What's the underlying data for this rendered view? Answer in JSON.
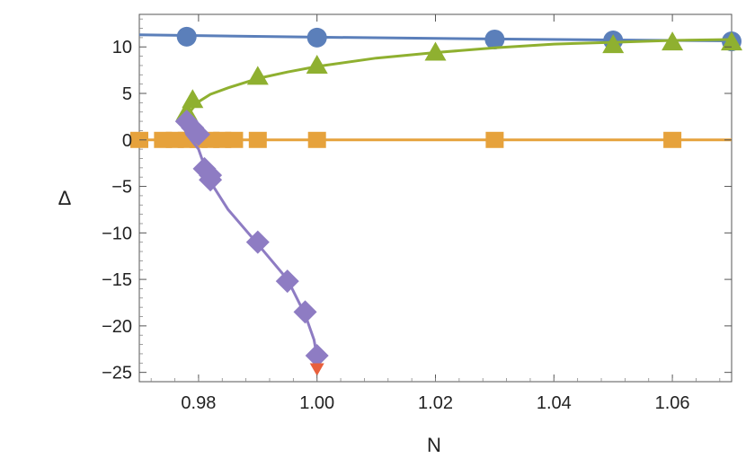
{
  "chart_data": {
    "type": "scatter",
    "title": "",
    "xlabel": "N",
    "ylabel": "Δ",
    "xlim": [
      0.97,
      1.07
    ],
    "ylim": [
      -26,
      13.5
    ],
    "xticks": [
      0.98,
      1.0,
      1.02,
      1.04,
      1.06
    ],
    "xtick_labels": [
      "0.98",
      "1.00",
      "1.02",
      "1.04",
      "1.06"
    ],
    "yticks": [
      -25,
      -20,
      -15,
      -10,
      -5,
      0,
      5,
      10
    ],
    "ytick_labels": [
      "−25",
      "−20",
      "−15",
      "−10",
      "−5",
      "0",
      "5",
      "10"
    ],
    "grid": false,
    "series": [
      {
        "marker": "circle",
        "color": "#5b7fba",
        "points": [
          [
            0.978,
            11.1
          ],
          [
            1.0,
            11.0
          ],
          [
            1.03,
            10.8
          ],
          [
            1.05,
            10.7
          ],
          [
            1.07,
            10.6
          ]
        ],
        "curve": [
          [
            0.97,
            11.3
          ],
          [
            1.0,
            11.05
          ],
          [
            1.03,
            10.85
          ],
          [
            1.05,
            10.75
          ],
          [
            1.07,
            10.65
          ]
        ]
      },
      {
        "marker": "triangle",
        "color": "#8fb030",
        "points": [
          [
            0.978,
            3.0
          ],
          [
            0.979,
            4.3
          ],
          [
            0.99,
            6.8
          ],
          [
            1.0,
            8.0
          ],
          [
            1.02,
            9.4
          ],
          [
            1.05,
            10.2
          ],
          [
            1.06,
            10.5
          ],
          [
            1.07,
            10.5
          ]
        ],
        "curve": [
          [
            0.9775,
            1.5
          ],
          [
            0.978,
            2.5
          ],
          [
            0.979,
            3.4
          ],
          [
            0.98,
            4.1
          ],
          [
            0.982,
            4.9
          ],
          [
            0.985,
            5.6
          ],
          [
            0.99,
            6.6
          ],
          [
            0.995,
            7.3
          ],
          [
            1.0,
            7.9
          ],
          [
            1.01,
            8.8
          ],
          [
            1.02,
            9.4
          ],
          [
            1.03,
            9.9
          ],
          [
            1.04,
            10.3
          ],
          [
            1.05,
            10.5
          ],
          [
            1.06,
            10.7
          ],
          [
            1.07,
            10.8
          ]
        ]
      },
      {
        "marker": "square",
        "color": "#e6a23c",
        "points": [
          [
            0.97,
            0
          ],
          [
            0.974,
            0
          ],
          [
            0.976,
            0
          ],
          [
            0.978,
            0
          ],
          [
            0.98,
            0
          ],
          [
            0.982,
            0
          ],
          [
            0.984,
            0
          ],
          [
            0.986,
            0
          ],
          [
            0.99,
            0
          ],
          [
            1.0,
            0
          ],
          [
            1.03,
            0
          ],
          [
            1.06,
            0
          ]
        ],
        "curve": [
          [
            0.97,
            0
          ],
          [
            1.07,
            0
          ]
        ]
      },
      {
        "marker": "diamond",
        "color": "#8e7cc3",
        "points": [
          [
            0.978,
            2.0
          ],
          [
            0.979,
            1.3
          ],
          [
            0.98,
            0.6
          ],
          [
            0.981,
            -3.1
          ],
          [
            0.982,
            -3.8
          ],
          [
            0.982,
            -4.3
          ],
          [
            0.99,
            -11.0
          ],
          [
            0.995,
            -15.2
          ],
          [
            0.998,
            -18.5
          ],
          [
            1.0,
            -23.2
          ]
        ],
        "curve": [
          [
            0.9775,
            1.5
          ],
          [
            0.978,
            0.6
          ],
          [
            0.98,
            -1.0
          ],
          [
            0.981,
            -2.8
          ],
          [
            0.982,
            -4.5
          ],
          [
            0.985,
            -7.5
          ],
          [
            0.99,
            -11.2
          ],
          [
            0.995,
            -15.0
          ],
          [
            0.998,
            -18.8
          ],
          [
            0.9995,
            -21.5
          ],
          [
            1.0,
            -23.3
          ]
        ]
      },
      {
        "marker": "triangle-down",
        "color": "#e8603c",
        "points": [
          [
            1.0,
            -24.6
          ]
        ],
        "curve": []
      }
    ]
  }
}
